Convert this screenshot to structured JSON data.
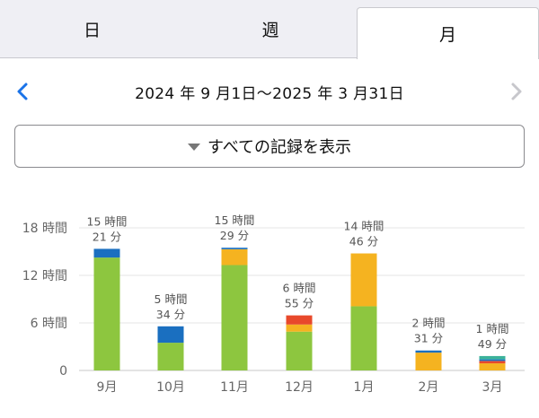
{
  "tabs": [
    {
      "label": "日",
      "selected": false
    },
    {
      "label": "週",
      "selected": false
    },
    {
      "label": "月",
      "selected": true
    }
  ],
  "range": {
    "label": "2024 年 9 月1日～2025 年 3 月31日",
    "prev_icon": "chevron-left-icon",
    "next_icon": "chevron-right-icon",
    "accent_color": "#1a73e8",
    "disabled_color": "#c7c7cc"
  },
  "filter": {
    "label": "すべての記録を表示",
    "icon": "caret-down-icon"
  },
  "chart_data": {
    "type": "bar",
    "stacked": true,
    "categories": [
      "9月",
      "10月",
      "11月",
      "12月",
      "1月",
      "2月",
      "3月"
    ],
    "y_ticks": [
      "0",
      "6 時間",
      "12 時間",
      "18 時間"
    ],
    "y_tick_values": [
      0,
      6,
      12,
      18
    ],
    "ylim": [
      0,
      20
    ],
    "grid": true,
    "series": [
      {
        "color": "#8dc63f",
        "values": [
          14.25,
          3.5,
          13.3,
          4.9,
          8.1,
          0,
          0
        ]
      },
      {
        "color": "#f5b320",
        "values": [
          0,
          0,
          2.0,
          0.9,
          6.67,
          2.25,
          0.9
        ]
      },
      {
        "color": "#e8492b",
        "values": [
          0,
          0,
          0,
          1.15,
          0,
          0,
          0.3
        ]
      },
      {
        "color": "#1a6fc0",
        "values": [
          1.1,
          2.07,
          0.19,
          0,
          0,
          0.27,
          0.2
        ]
      },
      {
        "color": "#3bb29a",
        "values": [
          0,
          0,
          0,
          0,
          0,
          0,
          0.42
        ]
      }
    ],
    "totals": [
      {
        "line1": "15 時間",
        "line2": "21 分"
      },
      {
        "line1": "5 時間",
        "line2": "34 分"
      },
      {
        "line1": "15 時間",
        "line2": "29 分"
      },
      {
        "line1": "6 時間",
        "line2": "55 分"
      },
      {
        "line1": "14 時間",
        "line2": "46 分"
      },
      {
        "line1": "2 時間",
        "line2": "31 分"
      },
      {
        "line1": "1 時間",
        "line2": "49 分"
      }
    ]
  }
}
